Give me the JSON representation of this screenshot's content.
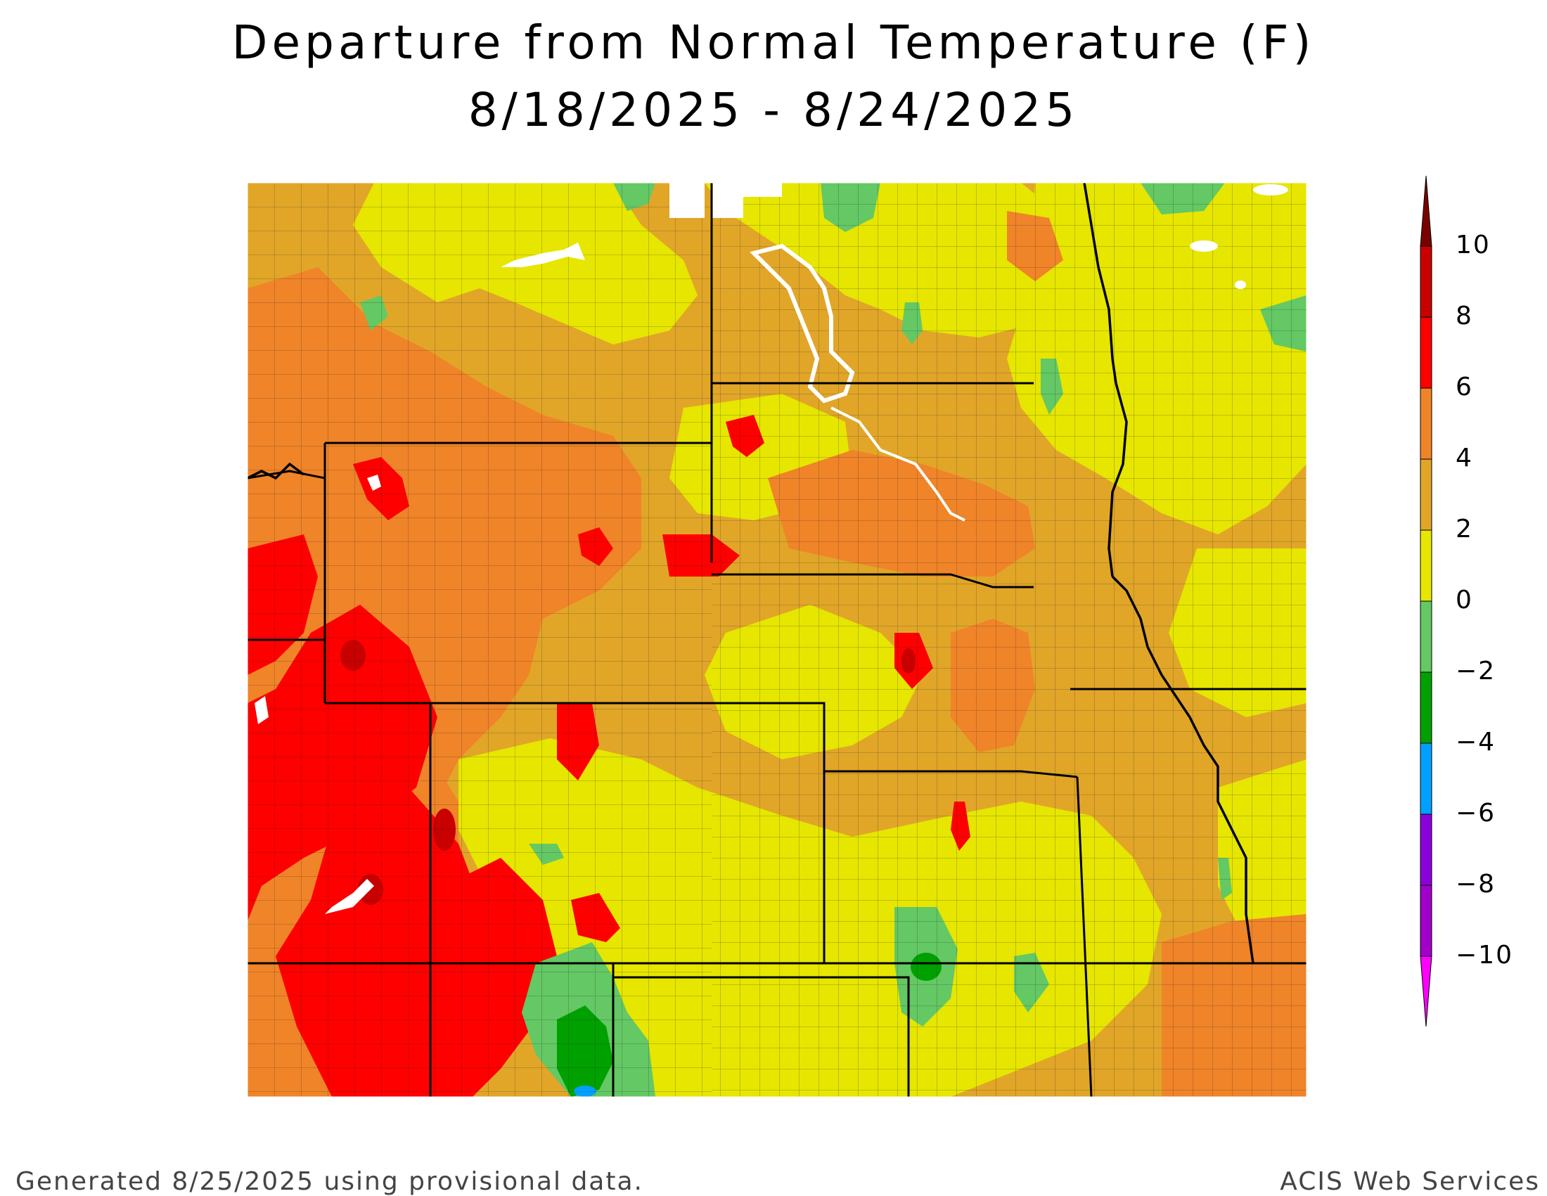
{
  "title_line1": "Departure from Normal Temperature (F)",
  "title_line2": "8/18/2025 - 8/24/2025",
  "legend": {
    "unit": "F",
    "tick_labels": [
      "10",
      "8",
      "6",
      "4",
      "2",
      "0",
      "−2",
      "−4",
      "−6",
      "−8",
      "−10"
    ],
    "bins": [
      {
        "range": "> 10",
        "color": "#7a0000"
      },
      {
        "range": "8 to 10",
        "color": "#c80000"
      },
      {
        "range": "6 to 8",
        "color": "#ff0000"
      },
      {
        "range": "4 to 6",
        "color": "#f08428"
      },
      {
        "range": "2 to 4",
        "color": "#e1a628"
      },
      {
        "range": "0 to 2",
        "color": "#e6e600"
      },
      {
        "range": "-2 to 0",
        "color": "#64c864"
      },
      {
        "range": "-4 to -2",
        "color": "#00a000"
      },
      {
        "range": "-6 to -4",
        "color": "#00a0ff"
      },
      {
        "range": "-8 to -6",
        "color": "#8c00dc"
      },
      {
        "range": "-10 to -8",
        "color": "#a000c8"
      },
      {
        "range": "< -10",
        "color": "#ff00ff"
      }
    ]
  },
  "footer_left": "Generated 8/25/2025 using provisional data.",
  "footer_right": "ACIS Web Services"
}
